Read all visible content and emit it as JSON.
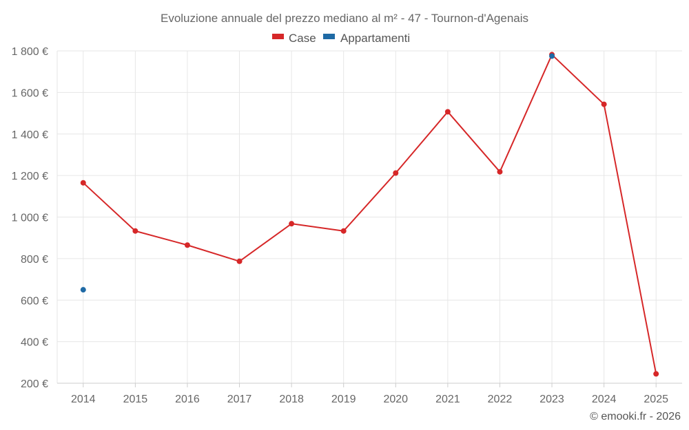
{
  "chart_data": {
    "type": "line",
    "title": "Evoluzione annuale del prezzo mediano al m² - 47 - Tournon-d'Agenais",
    "x": [
      "2014",
      "2015",
      "2016",
      "2017",
      "2018",
      "2019",
      "2020",
      "2021",
      "2022",
      "2023",
      "2024",
      "2025"
    ],
    "series": [
      {
        "name": "Case",
        "color": "#d62728",
        "values": [
          1165,
          933,
          865,
          787,
          968,
          933,
          1212,
          1507,
          1218,
          1782,
          1543,
          245
        ]
      },
      {
        "name": "Appartamenti",
        "color": "#1f6aa5",
        "values": [
          650,
          null,
          null,
          null,
          null,
          null,
          null,
          null,
          null,
          1775,
          null,
          null
        ]
      }
    ],
    "yticks": [
      200,
      400,
      600,
      800,
      1000,
      1200,
      1400,
      1600,
      1800
    ],
    "ytick_labels": [
      "200 €",
      "400 €",
      "600 €",
      "800 €",
      "1 000 €",
      "1 200 €",
      "1 400 €",
      "1 600 €",
      "1 800 €"
    ],
    "ylim": [
      200,
      1800
    ],
    "xlabel": "",
    "ylabel": "",
    "grid": true,
    "legend_position": "top-center"
  },
  "credit": "© emooki.fr - 2026"
}
